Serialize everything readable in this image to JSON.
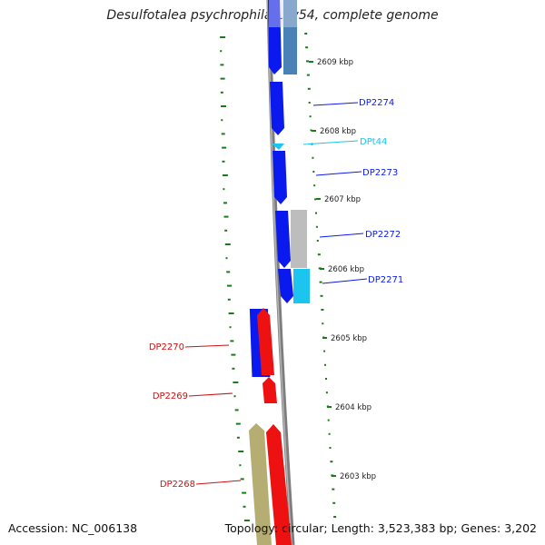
{
  "title": "Desulfotalea psychrophila LSv54, complete genome",
  "footer": {
    "accession": "Accession: NC_006138",
    "topology": "Topology: circular; Length: 3,523,383 bp; Genes: 3,202"
  },
  "colors": {
    "blue": "#0a1aee",
    "steel": "#4a82b8",
    "gray": "#bdbdbd",
    "cyan": "#1cc4f0",
    "red": "#ee1111",
    "khaki": "#b5ad72",
    "green": "#1c7a1c",
    "backbone": "#8a8a8a"
  },
  "ticks": [
    {
      "label": "2609 kbp"
    },
    {
      "label": "2608 kbp"
    },
    {
      "label": "2607 kbp"
    },
    {
      "label": "2606 kbp"
    },
    {
      "label": "2605 kbp"
    },
    {
      "label": "2604 kbp"
    },
    {
      "label": "2603 kbp"
    }
  ],
  "genes": [
    {
      "label": "DP2274",
      "strand": "right",
      "color": "#0a1aee"
    },
    {
      "label": "DPt44",
      "strand": "right",
      "color": "#1cc4f0"
    },
    {
      "label": "DP2273",
      "strand": "right",
      "color": "#0a1aee"
    },
    {
      "label": "DP2272",
      "strand": "right",
      "color": "#0a1aee"
    },
    {
      "label": "DP2271",
      "strand": "right",
      "color": "#0a1aee"
    },
    {
      "label": "DP2270",
      "strand": "left",
      "color": "#cc1111"
    },
    {
      "label": "DP2269",
      "strand": "left",
      "color": "#cc1111"
    },
    {
      "label": "DP2268",
      "strand": "left",
      "color": "#cc1111"
    }
  ]
}
